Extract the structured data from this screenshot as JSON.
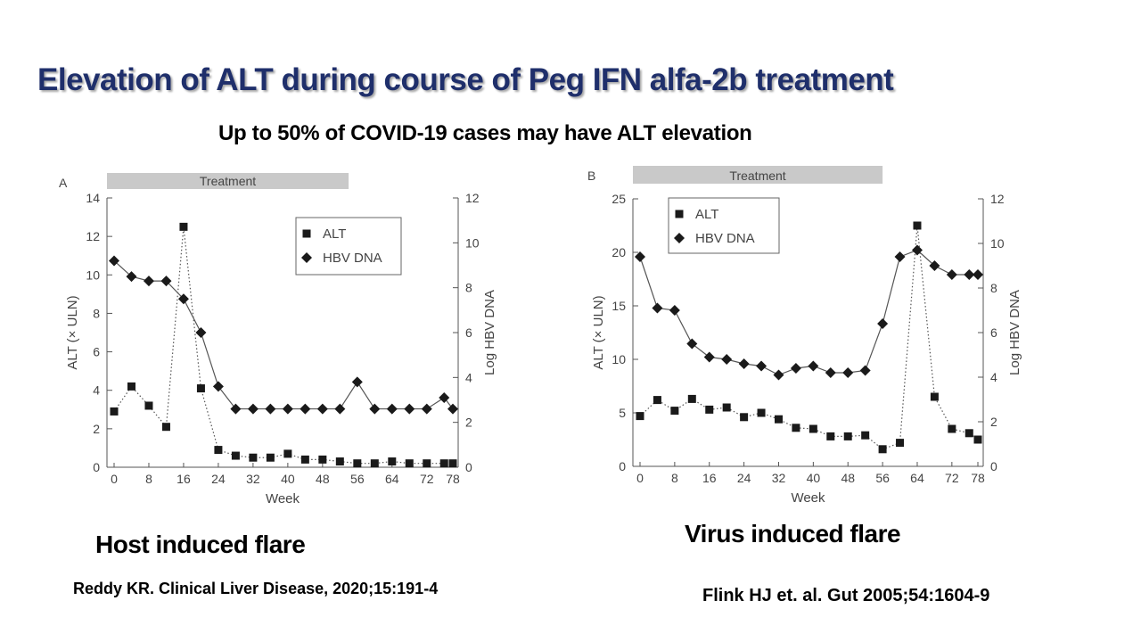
{
  "slide": {
    "title": "Elevation of ALT during course of Peg IFN alfa-2b treatment",
    "subtitle": "Up to 50% of COVID-19 cases may have ALT elevation"
  },
  "panels": [
    {
      "caption": "Host induced flare",
      "reference": "Reddy KR. Clinical Liver Disease, 2020;15:191-4"
    },
    {
      "caption": "Virus induced flare",
      "reference": "Flink HJ et. al. Gut 2005;54:1604-9"
    }
  ],
  "chart_data": [
    {
      "type": "line",
      "panel_label": "A",
      "treatment_label": "Treatment",
      "treatment_weeks": [
        0,
        54
      ],
      "xlabel": "Week",
      "ylabel": "ALT (× ULN)",
      "ylabel_right": "Log HBV DNA",
      "xticks": [
        0,
        8,
        16,
        24,
        32,
        40,
        48,
        56,
        64,
        72,
        78
      ],
      "xlim": [
        0,
        78
      ],
      "ylim": [
        0,
        14
      ],
      "yticks": [
        0,
        2,
        4,
        6,
        8,
        10,
        12,
        14
      ],
      "ylim_right": [
        0,
        12
      ],
      "yticks_right": [
        0,
        2,
        4,
        6,
        8,
        10,
        12
      ],
      "legend_position": "top-right",
      "series": [
        {
          "name": "ALT",
          "marker": "square",
          "line_style": "dotted",
          "axis": "left",
          "x": [
            0,
            4,
            8,
            12,
            16,
            20,
            24,
            28,
            32,
            36,
            40,
            44,
            48,
            52,
            56,
            60,
            64,
            68,
            72,
            76,
            78
          ],
          "y": [
            2.9,
            4.2,
            3.2,
            2.1,
            12.5,
            4.1,
            0.9,
            0.6,
            0.5,
            0.5,
            0.7,
            0.4,
            0.4,
            0.3,
            0.2,
            0.2,
            0.3,
            0.2,
            0.2,
            0.2,
            0.2
          ]
        },
        {
          "name": "HBV DNA",
          "marker": "diamond",
          "line_style": "solid",
          "axis": "right",
          "x": [
            0,
            4,
            8,
            12,
            16,
            20,
            24,
            28,
            32,
            36,
            40,
            44,
            48,
            52,
            56,
            60,
            64,
            68,
            72,
            76,
            78
          ],
          "y": [
            9.2,
            8.5,
            8.3,
            8.3,
            7.5,
            6.0,
            3.6,
            2.6,
            2.6,
            2.6,
            2.6,
            2.6,
            2.6,
            2.6,
            3.8,
            2.6,
            2.6,
            2.6,
            2.6,
            3.1,
            2.6
          ]
        }
      ]
    },
    {
      "type": "line",
      "panel_label": "B",
      "treatment_label": "Treatment",
      "treatment_weeks": [
        0,
        56
      ],
      "xlabel": "Week",
      "ylabel": "ALT (× ULN)",
      "ylabel_right": "Log HBV DNA",
      "xticks": [
        0,
        8,
        16,
        24,
        32,
        40,
        48,
        56,
        64,
        72,
        78
      ],
      "xlim": [
        0,
        78
      ],
      "ylim": [
        0,
        25
      ],
      "yticks": [
        0,
        5,
        10,
        15,
        20,
        25
      ],
      "ylim_right": [
        0,
        12
      ],
      "yticks_right": [
        0,
        2,
        4,
        6,
        8,
        10,
        12
      ],
      "legend_position": "top-left",
      "series": [
        {
          "name": "ALT",
          "marker": "square",
          "line_style": "dotted",
          "axis": "left",
          "x": [
            0,
            4,
            8,
            12,
            16,
            20,
            24,
            28,
            32,
            36,
            40,
            44,
            48,
            52,
            56,
            60,
            64,
            68,
            72,
            76,
            78
          ],
          "y": [
            4.7,
            6.2,
            5.2,
            6.3,
            5.3,
            5.5,
            4.6,
            5.0,
            4.4,
            3.6,
            3.5,
            2.8,
            2.8,
            2.9,
            1.6,
            2.2,
            22.5,
            6.5,
            3.5,
            3.1,
            2.5
          ]
        },
        {
          "name": "HBV DNA",
          "marker": "diamond",
          "line_style": "solid",
          "axis": "right",
          "x": [
            0,
            4,
            8,
            12,
            16,
            20,
            24,
            28,
            32,
            36,
            40,
            44,
            48,
            52,
            56,
            60,
            64,
            68,
            72,
            76,
            78
          ],
          "y": [
            9.4,
            7.1,
            7.0,
            5.5,
            4.9,
            4.8,
            4.6,
            4.5,
            4.1,
            4.4,
            4.5,
            4.2,
            4.2,
            4.3,
            6.4,
            9.4,
            9.7,
            9.0,
            8.6,
            8.6,
            8.6
          ]
        }
      ]
    }
  ]
}
